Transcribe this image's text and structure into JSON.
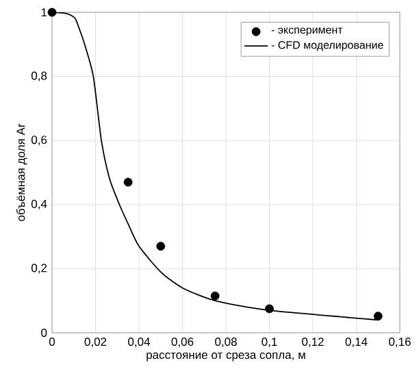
{
  "chart_data": {
    "type": "line",
    "xlabel": "расстояние от среза сопла, м",
    "ylabel": "объёмная доля Ar",
    "xlim": [
      0,
      0.16
    ],
    "ylim": [
      0,
      1
    ],
    "xticks": [
      0,
      {
        "value": 0.02,
        "label": "0,02"
      },
      {
        "value": 0.04,
        "label": "0,04"
      },
      {
        "value": 0.06,
        "label": "0,06"
      },
      {
        "value": 0.08,
        "label": "0,08"
      },
      {
        "value": 0.1,
        "label": "0,1"
      },
      {
        "value": 0.12,
        "label": "0,12"
      },
      {
        "value": 0.14,
        "label": "0,14"
      },
      {
        "value": 0.16,
        "label": "0,16"
      }
    ],
    "yticks": [
      0,
      {
        "value": 0.2,
        "label": "0,2"
      },
      {
        "value": 0.4,
        "label": "0,4"
      },
      {
        "value": 0.6,
        "label": "0,6"
      },
      {
        "value": 0.8,
        "label": "0,8"
      },
      1
    ],
    "grid": true,
    "legend": "top right",
    "marker": "circle",
    "series": [
      {
        "name": "- эксперимент",
        "type": "scatter",
        "color": "#000000",
        "x": [
          0,
          0.035,
          0.05,
          0.075,
          0.1,
          0.15
        ],
        "values": [
          1,
          0.47,
          0.27,
          0.115,
          0.075,
          0.052
        ]
      },
      {
        "name": "- CFD моделирование",
        "marker": "none",
        "line_style": "solid",
        "color": "#000000",
        "x": [
          0,
          0.005,
          0.008,
          0.0107,
          0.013,
          0.015,
          0.019,
          0.0227,
          0.0265,
          0.031,
          0.035,
          0.04,
          0.05,
          0.06,
          0.075,
          0.1,
          0.15
        ],
        "values": [
          1,
          0.998,
          0.993,
          0.98,
          0.94,
          0.9,
          0.8,
          0.6,
          0.48,
          0.4,
          0.34,
          0.27,
          0.19,
          0.14,
          0.1,
          0.07,
          0.04
        ]
      }
    ]
  }
}
